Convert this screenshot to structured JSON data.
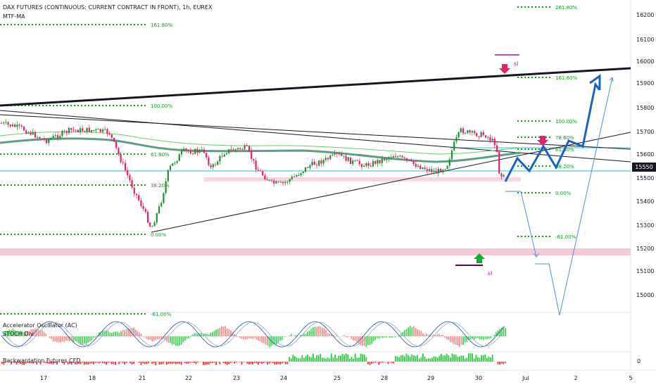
{
  "header": {
    "title": "DAX FUTURES (CONTINUOUS: CURRENT CONTRACT IN FRONT), 1h, EUREX",
    "subtitle": "MTF-MA"
  },
  "indicators": {
    "ac_label": "Accelerator Oscillator (AC)",
    "stoch_label": "STOCH Div",
    "backwardation_label": "Backwardation Futures CFD",
    "backwardation_zero": "0"
  },
  "price_axis": {
    "ticks": [
      "16200",
      "16100",
      "16000",
      "15900",
      "15800",
      "15700",
      "15600",
      "15500",
      "15400",
      "15300",
      "15200",
      "15100",
      "15000"
    ],
    "current_price": "15550"
  },
  "time_axis": {
    "ticks": [
      "17",
      "18",
      "21",
      "22",
      "23",
      "24",
      "25",
      "28",
      "29",
      "30",
      "Jul",
      "2",
      "5"
    ]
  },
  "fib_left": [
    "161.80%",
    "100.00%",
    "61.80%",
    "38.20%",
    "0.00%",
    "-61.00%"
  ],
  "fib_right": [
    "261.80%",
    "161.80%",
    "100.00%",
    "78.60%",
    "61.80%",
    "38.20%",
    "0.00%",
    "-61.00%"
  ],
  "annotations": {
    "sl_top": "sl",
    "sl_bottom": "sl"
  },
  "colors": {
    "up": "#26a69a",
    "up_candle": "#1e8f2f",
    "down": "#e91e63",
    "fib": "#0b9a1c",
    "projection": "#1565c0",
    "ma": "#5b9e82",
    "zone": "#f8c8d8",
    "level": "#26c6da"
  }
}
